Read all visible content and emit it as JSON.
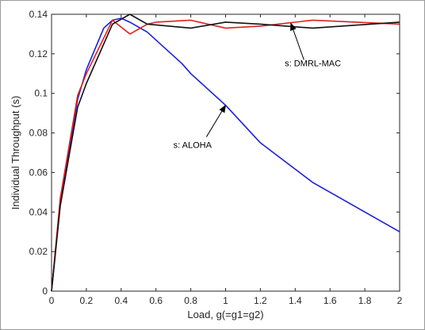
{
  "chart_data": {
    "type": "line",
    "xlabel": "Load, g(=g1=g2)",
    "ylabel": "Individual Throughput (s)",
    "xlim": [
      0,
      2
    ],
    "ylim": [
      0,
      0.14
    ],
    "xticks": [
      "0",
      "0.2",
      "0.4",
      "0.6",
      "0.8",
      "1",
      "1.2",
      "1.4",
      "1.6",
      "1.8",
      "2"
    ],
    "yticks": [
      "0",
      "0.02",
      "0.04",
      "0.06",
      "0.08",
      "0.1",
      "0.12",
      "0.14"
    ],
    "grid": false,
    "series": [
      {
        "color": "#1f1fd6",
        "points": [
          [
            0,
            0
          ],
          [
            0.05,
            0.045
          ],
          [
            0.15,
            0.097
          ],
          [
            0.2,
            0.112
          ],
          [
            0.3,
            0.133
          ],
          [
            0.35,
            0.137
          ],
          [
            0.4,
            0.138
          ],
          [
            0.45,
            0.136
          ],
          [
            0.55,
            0.131
          ],
          [
            0.6,
            0.127
          ],
          [
            0.75,
            0.115
          ],
          [
            0.8,
            0.11
          ],
          [
            1.0,
            0.094
          ],
          [
            1.2,
            0.075
          ],
          [
            1.5,
            0.055
          ],
          [
            2.0,
            0.03
          ]
        ]
      },
      {
        "color": "#e0201e",
        "points": [
          [
            0,
            0
          ],
          [
            0.05,
            0.047
          ],
          [
            0.15,
            0.099
          ],
          [
            0.2,
            0.11
          ],
          [
            0.35,
            0.137
          ],
          [
            0.45,
            0.13
          ],
          [
            0.55,
            0.135
          ],
          [
            0.6,
            0.136
          ],
          [
            0.8,
            0.137
          ],
          [
            1.0,
            0.133
          ],
          [
            1.2,
            0.134
          ],
          [
            1.5,
            0.137
          ],
          [
            2.0,
            0.135
          ]
        ]
      },
      {
        "color": "#111111",
        "points": [
          [
            0,
            0
          ],
          [
            0.05,
            0.043
          ],
          [
            0.15,
            0.093
          ],
          [
            0.2,
            0.105
          ],
          [
            0.35,
            0.135
          ],
          [
            0.45,
            0.14
          ],
          [
            0.55,
            0.135
          ],
          [
            0.8,
            0.133
          ],
          [
            1.0,
            0.136
          ],
          [
            1.2,
            0.135
          ],
          [
            1.5,
            0.133
          ],
          [
            2.0,
            0.136
          ]
        ]
      }
    ],
    "annotations": [
      {
        "text": "s: ALOHA",
        "text_at": [
          0.7,
          0.0725
        ],
        "arrow_from": [
          0.89,
          0.078
        ],
        "arrow_to": [
          1.0,
          0.094
        ]
      },
      {
        "text": "s: DMRL-MAC",
        "text_at": [
          1.34,
          0.1137
        ],
        "arrow_from": [
          1.45,
          0.117
        ],
        "arrow_to": [
          1.375,
          0.1355
        ]
      }
    ]
  }
}
